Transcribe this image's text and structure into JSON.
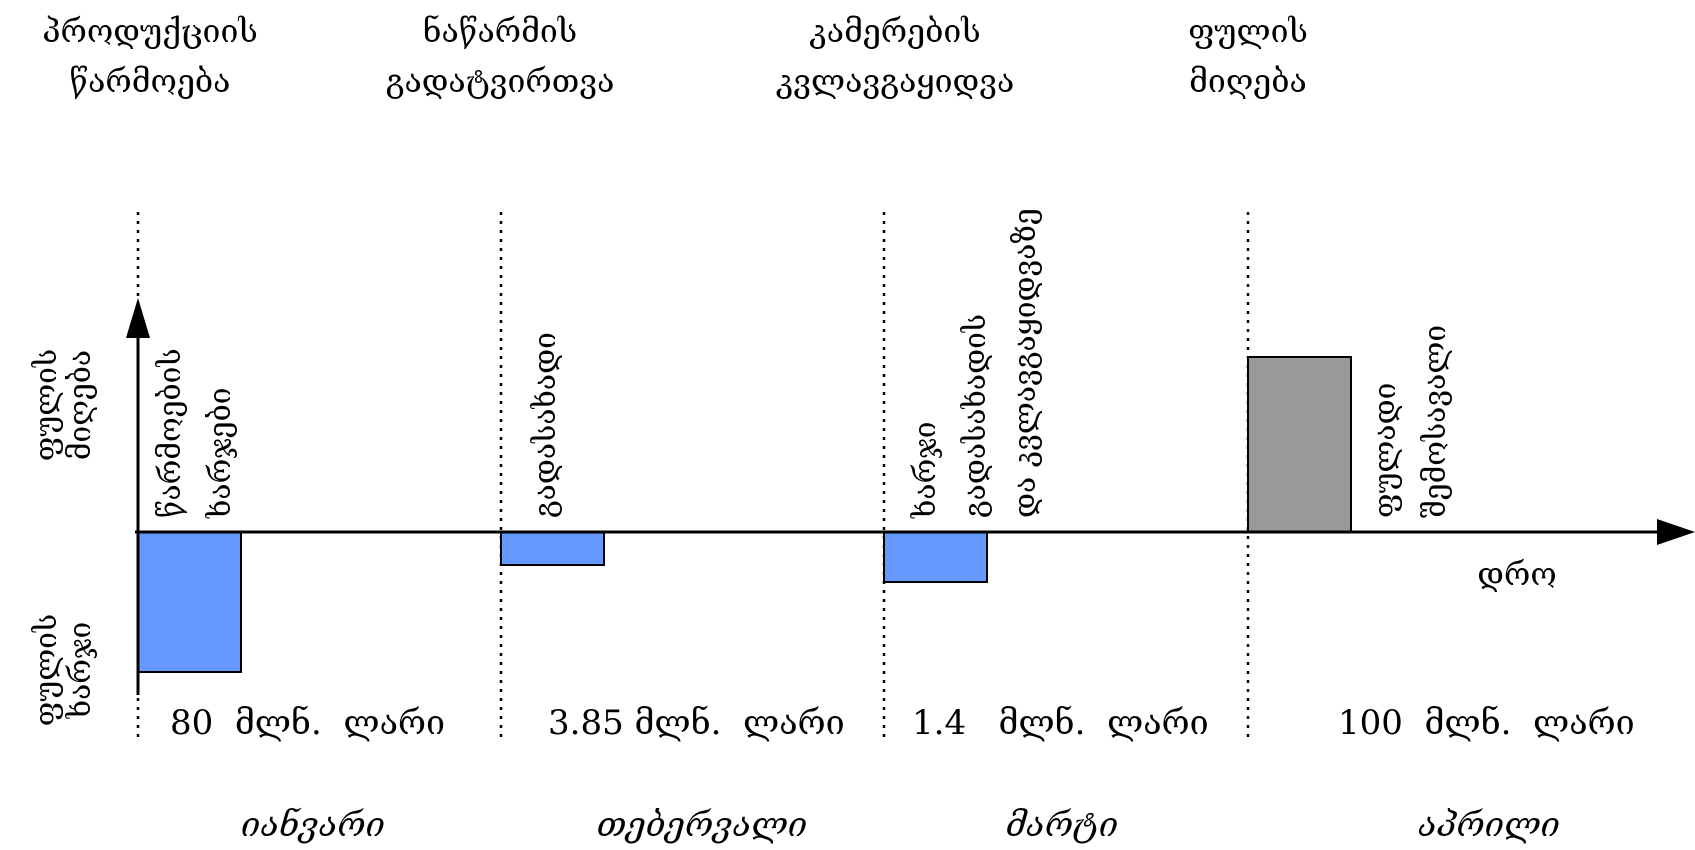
{
  "headers": [
    [
      "პროდუქციის",
      "წარმოება"
    ],
    [
      "ნაწარმის",
      "გადატვირთვა"
    ],
    [
      "კამერების",
      "კვლავგაყიდვა"
    ],
    [
      "ფულის",
      "მიღება"
    ]
  ],
  "y_axis": {
    "upper_label": [
      "ფულის",
      "მიღება"
    ],
    "lower_label": [
      "ფულის",
      "ხარჯი"
    ]
  },
  "x_axis_label": "დრო",
  "chart_data": {
    "type": "bar",
    "categories": [
      "იანვარი",
      "თებერვალი",
      "მარტი",
      "აპრილი"
    ],
    "series": [
      {
        "values": [
          -80,
          -3.85,
          -1.4,
          100
        ]
      }
    ],
    "bar_labels": [
      [
        "წარმოების",
        "ხარჯები"
      ],
      [
        "გადასახადი"
      ],
      [
        "ხარჯი",
        "გადასახადის",
        "და კვლავგაყიდვაზე"
      ],
      [
        "ფულადი",
        "შემოსავალი"
      ]
    ],
    "amounts": [
      "80  მლნ.  ლარი",
      "3.85 მლნ.  ლარი",
      "1.4   მლნ.  ლარი",
      "100  მლნ.  ლარი"
    ],
    "xlabel": "დრო",
    "colors": {
      "expense": "#6699ff",
      "income": "#999999"
    }
  }
}
